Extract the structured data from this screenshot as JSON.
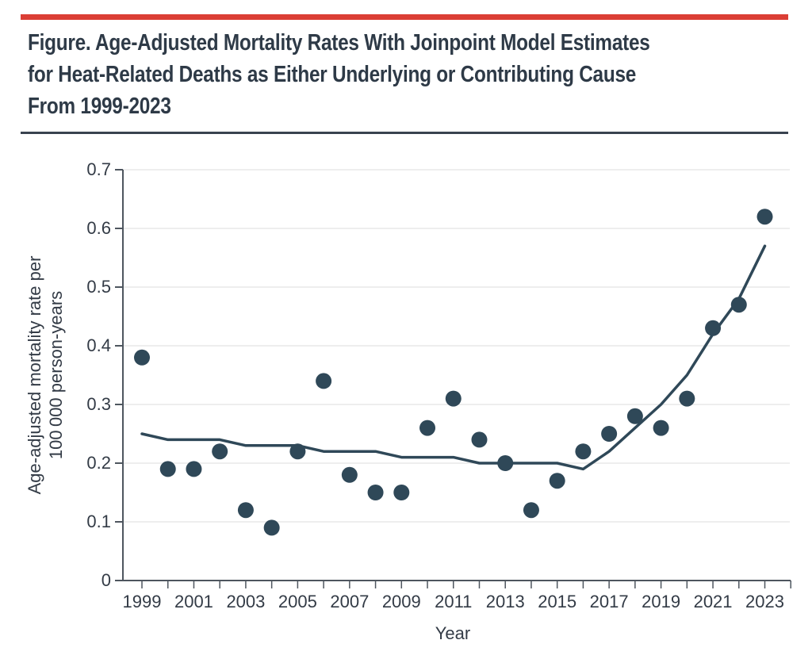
{
  "figure": {
    "title": "Figure. Age-Adjusted Mortality Rates With Joinpoint Model Estimates for Heat-Related Deaths as Either Underlying or Contributing Cause From 1999-2023",
    "title_lines": [
      "Figure. Age-Adjusted Mortality Rates With Joinpoint Model Estimates",
      "for Heat-Related Deaths as Either Underlying or Contributing Cause",
      "From 1999-2023"
    ],
    "accent_color": "#DB3E35",
    "separator_color": "#39434F",
    "title_color": "#2E3A47"
  },
  "chart_data": {
    "type": "scatter",
    "title": "Age-Adjusted Mortality Rates With Joinpoint Model Estimates for Heat-Related Deaths as Either Underlying or Contributing Cause From 1999-2023",
    "x": [
      1999,
      2000,
      2001,
      2002,
      2003,
      2004,
      2005,
      2006,
      2007,
      2008,
      2009,
      2010,
      2011,
      2012,
      2013,
      2014,
      2015,
      2016,
      2017,
      2018,
      2019,
      2020,
      2021,
      2022,
      2023
    ],
    "series": [
      {
        "name": "observed-age-adjusted-rate",
        "style": "points",
        "values": [
          0.38,
          0.19,
          0.19,
          0.22,
          0.12,
          0.09,
          0.22,
          0.34,
          0.18,
          0.15,
          0.15,
          0.26,
          0.31,
          0.24,
          0.2,
          0.12,
          0.17,
          0.22,
          0.25,
          0.28,
          0.26,
          0.31,
          0.43,
          0.47,
          0.62
        ]
      },
      {
        "name": "joinpoint-model-estimate",
        "style": "line",
        "values": [
          0.25,
          0.24,
          0.24,
          0.24,
          0.23,
          0.23,
          0.23,
          0.22,
          0.22,
          0.22,
          0.21,
          0.21,
          0.21,
          0.2,
          0.2,
          0.2,
          0.2,
          0.19,
          0.22,
          0.26,
          0.3,
          0.35,
          0.42,
          0.48,
          0.57
        ]
      }
    ],
    "xlabel": "Year",
    "ylabel_lines": [
      "Age-adjusted mortality rate per",
      "100 000 person-years"
    ],
    "ylim": [
      0,
      0.7
    ],
    "yticks": [
      0,
      0.1,
      0.2,
      0.3,
      0.4,
      0.5,
      0.6,
      0.7
    ],
    "ytick_labels": [
      "0",
      "0.1",
      "0.2",
      "0.3",
      "0.4",
      "0.5",
      "0.6",
      "0.7"
    ],
    "xtick_labels": [
      "1999",
      "2001",
      "2003",
      "2005",
      "2007",
      "2009",
      "2011",
      "2013",
      "2015",
      "2017",
      "2019",
      "2021",
      "2023"
    ],
    "xtick_label_step": 2,
    "x_axis_end_year": 2024,
    "grid": "horizontal",
    "legend": "none",
    "point_color": "#2F4858",
    "line_color": "#2F4858",
    "grid_color": "#E8E8E8",
    "axis_color": "#4E565F",
    "text_color": "#333B46"
  }
}
